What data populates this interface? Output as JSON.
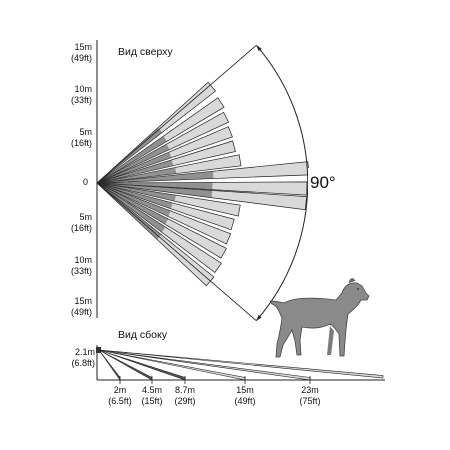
{
  "top_view": {
    "title": "Вид сверху",
    "distance_labels": [
      {
        "m": "15m",
        "ft": "(49ft)"
      },
      {
        "m": "10m",
        "ft": "(33ft)"
      },
      {
        "m": "5m",
        "ft": "(16ft)"
      },
      {
        "m": "0",
        "ft": ""
      },
      {
        "m": "5m",
        "ft": "(16ft)"
      },
      {
        "m": "10m",
        "ft": "(33ft)"
      },
      {
        "m": "15m",
        "ft": "(49ft)"
      }
    ],
    "coverage_angle": "90°"
  },
  "side_view": {
    "title": "Вид сбоку",
    "mount_height": {
      "m": "2.1m",
      "ft": "(6.8ft)"
    },
    "distance_labels": [
      {
        "m": "2m",
        "ft": "(6.5ft)"
      },
      {
        "m": "4.5m",
        "ft": "(15ft)"
      },
      {
        "m": "8.7m",
        "ft": "(29ft)"
      },
      {
        "m": "15m",
        "ft": "(49ft)"
      },
      {
        "m": "23m",
        "ft": "(75ft)"
      }
    ]
  },
  "colors": {
    "beam_fill": "#d9d9d9",
    "beam_dark": "#555555",
    "outline": "#222222",
    "dog": "#8a8a8a"
  }
}
